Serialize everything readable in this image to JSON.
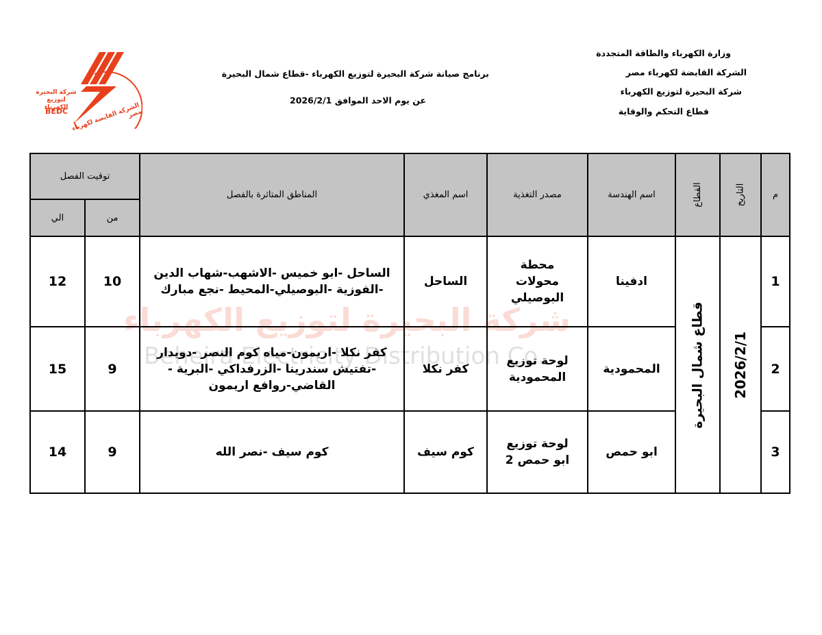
{
  "letterhead": {
    "lines": [
      "وزارة الكهرباء والطاقة المتجددة",
      "الشركة القابضة لكهرباء مصر",
      "شركة البحيرة لتوزيع الكهرباء",
      "قطاع التحكم والوقاية"
    ]
  },
  "title": {
    "line1": "برنامج صيانة شركة البحيرة لتوزيع الكهرباء -قطاع شمال البحيرة",
    "line2": "عن يوم الاحد  الموافق  2026/2/1"
  },
  "logo": {
    "name_ar": "شركة البحيرة لتوزيع الكهرباء",
    "abbr": "BEDC",
    "ring_text": "الشركة القابضة لكهرباء مصر",
    "color": "#e8401c"
  },
  "watermark": {
    "ar": "شركة البحيرة لتوزيع الكهرباء",
    "en": "Beheira Electricity Distribution Co."
  },
  "table": {
    "headers": {
      "index": "م",
      "date": "التاريخ",
      "sector": "القطاع",
      "engineering": "اسم الهندسة",
      "source": "مصدر التغذية",
      "feeder": "اسم المغذي",
      "areas": "المناطق المتاثرة بالفصل",
      "time": "توقيت الفصل",
      "from": "من",
      "to": "الي"
    },
    "date": "2026/2/1",
    "sector": "قطاع شمال  البحيرة",
    "rows": [
      {
        "index": "1",
        "engineering": "ادفينا",
        "source": "محطة محولات البوصيلي",
        "feeder": "الساحل",
        "areas": "الساحل -ابو خميس -الاشهب-شهاب الدين -الفوزية -البوصيلي-المحيط -نجع مبارك",
        "from": "10",
        "to": "12"
      },
      {
        "index": "2",
        "engineering": "المحمودية",
        "source": "لوحة توزيع المحمودية",
        "feeder": "كفر نكلا",
        "areas": "كفر نكلا -اريمون-مياه كوم النصر -دويدار -تفتيش سندرينا -الزرفداكي -البرية - القاضي-روافع اريمون",
        "from": "9",
        "to": "15"
      },
      {
        "index": "3",
        "engineering": "ابو حمص",
        "source": "لوحة توزيع ابو حمص 2",
        "feeder": "كوم سيف",
        "areas": "كوم سيف -نصر الله",
        "from": "9",
        "to": "14"
      }
    ]
  }
}
